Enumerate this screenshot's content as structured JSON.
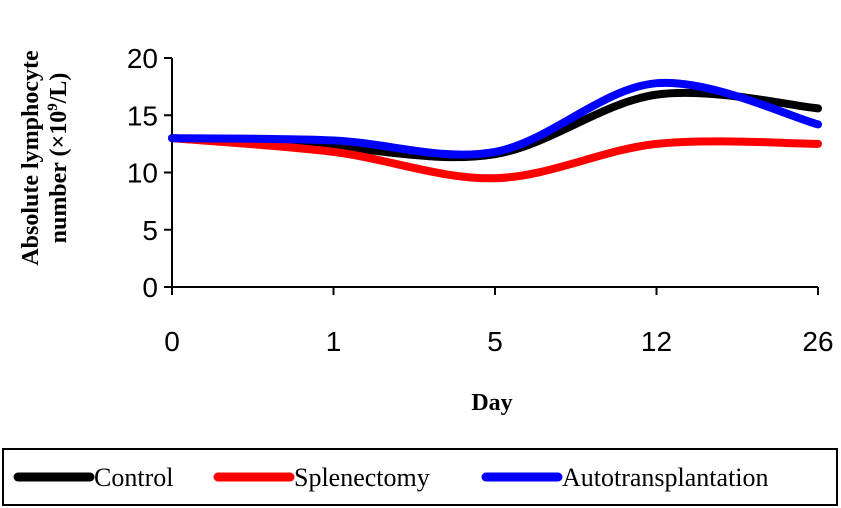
{
  "chart_data": {
    "type": "line",
    "title": "",
    "xlabel": "Day",
    "ylabel_line1": "Absolute lymphocyte",
    "ylabel_line2_prefix": "number (×10",
    "ylabel_line2_sup": "9",
    "ylabel_line2_suffix": "/L)",
    "categories": [
      "0",
      "1",
      "5",
      "12",
      "26"
    ],
    "ylim": [
      0,
      20
    ],
    "yticks": [
      0,
      5,
      10,
      15,
      20
    ],
    "grid": false,
    "legend_position": "bottom",
    "series": [
      {
        "name": "Control",
        "color": "#000000",
        "values": [
          13.0,
          12.2,
          11.6,
          16.8,
          15.6
        ]
      },
      {
        "name": "Splenectomy",
        "color": "#ff0000",
        "values": [
          13.0,
          11.8,
          9.5,
          12.5,
          12.5
        ]
      },
      {
        "name": "Autotransplantation",
        "color": "#0000ff",
        "values": [
          13.0,
          12.8,
          11.8,
          17.8,
          14.2
        ]
      }
    ]
  }
}
